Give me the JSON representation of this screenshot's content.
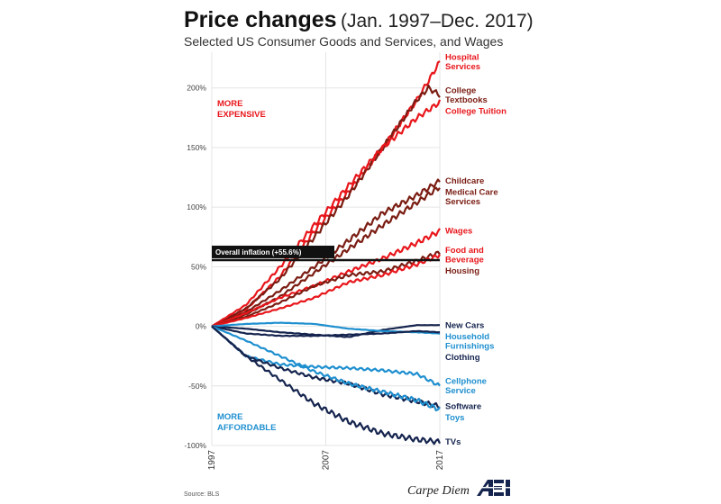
{
  "header": {
    "title_bold": "Price changes",
    "title_range": "(Jan. 1997–Dec. 2017)",
    "subtitle": "Selected US Consumer Goods and Services, and Wages"
  },
  "footer": {
    "source": "Source: BLS",
    "brand": "Carpe Diem",
    "logo_text": "AEI"
  },
  "colors": {
    "red": "#e8161b",
    "dark_red": "#7a1c12",
    "blue": "#1e8fcf",
    "navy": "#15244e",
    "black": "#111111"
  },
  "chart_data": {
    "type": "line",
    "xlim": [
      1997,
      2017
    ],
    "ylim": [
      -100,
      230
    ],
    "xticks": [
      {
        "value": 1997,
        "label": "1997"
      },
      {
        "value": 2007,
        "label": "2007"
      },
      {
        "value": 2017,
        "label": "2017"
      }
    ],
    "yticks": [
      {
        "value": 200,
        "label": "200%"
      },
      {
        "value": 150,
        "label": "150%"
      },
      {
        "value": 100,
        "label": "100%"
      },
      {
        "value": 50,
        "label": "50%"
      },
      {
        "value": 0,
        "label": "0%"
      },
      {
        "value": -50,
        "label": "-50%"
      },
      {
        "value": -100,
        "label": "-100%"
      }
    ],
    "zones": [
      {
        "text": "MORE EXPENSIVE",
        "color": "red"
      },
      {
        "text": "MORE AFFORDABLE",
        "color": "blue"
      }
    ],
    "inflation": {
      "label": "Overall inflation (+55.6%)",
      "value": 55.6
    },
    "series": [
      {
        "name": "Hospital Services",
        "color": "red",
        "x": [
          1997,
          2000,
          2003,
          2006,
          2009,
          2012,
          2015,
          2017
        ],
        "values": [
          0,
          14,
          42,
          80,
          113,
          150,
          190,
          222
        ]
      },
      {
        "name": "College Textbooks",
        "color": "dark_red",
        "x": [
          1997,
          2000,
          2003,
          2006,
          2009,
          2012,
          2015,
          2016,
          2017
        ],
        "values": [
          0,
          15,
          40,
          75,
          110,
          150,
          190,
          200,
          194
        ]
      },
      {
        "name": "College Tuition",
        "color": "red",
        "x": [
          1997,
          2000,
          2003,
          2006,
          2009,
          2012,
          2015,
          2017
        ],
        "values": [
          0,
          18,
          50,
          85,
          118,
          150,
          175,
          188
        ]
      },
      {
        "name": "Childcare",
        "color": "dark_red",
        "x": [
          1997,
          2000,
          2003,
          2006,
          2009,
          2012,
          2015,
          2017
        ],
        "values": [
          0,
          12,
          30,
          50,
          72,
          95,
          110,
          122
        ]
      },
      {
        "name": "Medical Care Services",
        "color": "dark_red",
        "x": [
          1997,
          2000,
          2003,
          2006,
          2009,
          2012,
          2015,
          2017
        ],
        "values": [
          0,
          10,
          25,
          45,
          65,
          85,
          104,
          117
        ]
      },
      {
        "name": "Wages",
        "color": "red",
        "x": [
          1997,
          2000,
          2003,
          2006,
          2009,
          2012,
          2015,
          2017
        ],
        "values": [
          0,
          11,
          24,
          34,
          46,
          57,
          70,
          80
        ]
      },
      {
        "name": "Housing",
        "color": "dark_red",
        "x": [
          1997,
          2000,
          2003,
          2006,
          2009,
          2012,
          2015,
          2017
        ],
        "values": [
          0,
          8,
          20,
          34,
          43,
          46,
          55,
          62
        ]
      },
      {
        "name": "Food and Beverage",
        "color": "red",
        "x": [
          1997,
          2000,
          2003,
          2006,
          2009,
          2012,
          2015,
          2017
        ],
        "values": [
          0,
          7,
          15,
          24,
          37,
          43,
          52,
          60
        ]
      },
      {
        "name": "New Cars",
        "color": "navy",
        "x": [
          1997,
          2000,
          2003,
          2006,
          2009,
          2012,
          2015,
          2017
        ],
        "values": [
          0,
          -2,
          -5,
          -7,
          -9,
          -3,
          1,
          1
        ]
      },
      {
        "name": "Household Furnishings",
        "color": "blue",
        "x": [
          1997,
          2000,
          2003,
          2006,
          2009,
          2012,
          2015,
          2017
        ],
        "values": [
          0,
          2,
          3,
          2,
          -2,
          -4,
          -5,
          -6
        ]
      },
      {
        "name": "Clothing",
        "color": "navy",
        "x": [
          1997,
          2000,
          2003,
          2006,
          2009,
          2012,
          2015,
          2017
        ],
        "values": [
          0,
          -6,
          -8,
          -8,
          -7,
          -6,
          -4,
          -5
        ]
      },
      {
        "name": "Cellphone Service",
        "color": "blue",
        "x": [
          1997,
          2000,
          2003,
          2006,
          2009,
          2012,
          2015,
          2017
        ],
        "values": [
          0,
          -25,
          -32,
          -34,
          -35,
          -37,
          -40,
          -50
        ]
      },
      {
        "name": "Software",
        "color": "navy",
        "x": [
          1997,
          2000,
          2003,
          2006,
          2009,
          2012,
          2015,
          2017
        ],
        "values": [
          0,
          -25,
          -35,
          -43,
          -48,
          -57,
          -63,
          -67
        ]
      },
      {
        "name": "Toys",
        "color": "blue",
        "x": [
          1997,
          2000,
          2003,
          2006,
          2009,
          2012,
          2015,
          2017
        ],
        "values": [
          0,
          -12,
          -25,
          -38,
          -48,
          -55,
          -62,
          -70
        ]
      },
      {
        "name": "TVs",
        "color": "navy",
        "x": [
          1997,
          2000,
          2003,
          2006,
          2009,
          2012,
          2015,
          2017
        ],
        "values": [
          0,
          -25,
          -45,
          -65,
          -80,
          -90,
          -95,
          -97
        ]
      }
    ],
    "labels": [
      {
        "series": "Hospital Services",
        "lines": [
          "Hospital",
          "Services"
        ],
        "color": "red"
      },
      {
        "series": "College Textbooks",
        "lines": [
          "College",
          "Textbooks"
        ],
        "color": "dark_red"
      },
      {
        "series": "College Tuition",
        "lines": [
          "College Tuition"
        ],
        "color": "red"
      },
      {
        "series": "Childcare",
        "lines": [
          "Childcare"
        ],
        "color": "dark_red"
      },
      {
        "series": "Medical Care Services",
        "lines": [
          "Medical Care",
          "Services"
        ],
        "color": "dark_red"
      },
      {
        "series": "Wages",
        "lines": [
          "Wages"
        ],
        "color": "red"
      },
      {
        "series": "Housing",
        "lines": [
          "Housing"
        ],
        "color": "dark_red"
      },
      {
        "series": "Food and Beverage",
        "lines": [
          "Food and",
          "Beverage"
        ],
        "color": "red"
      },
      {
        "series": "New Cars",
        "lines": [
          "New Cars"
        ],
        "color": "navy"
      },
      {
        "series": "Household Furnishings",
        "lines": [
          "Household",
          "Furnishings"
        ],
        "color": "blue"
      },
      {
        "series": "Clothing",
        "lines": [
          "Clothing"
        ],
        "color": "navy"
      },
      {
        "series": "Cellphone Service",
        "lines": [
          "Cellphone",
          "Service"
        ],
        "color": "blue"
      },
      {
        "series": "Software",
        "lines": [
          "Software"
        ],
        "color": "navy"
      },
      {
        "series": "Toys",
        "lines": [
          "Toys"
        ],
        "color": "blue"
      },
      {
        "series": "TVs",
        "lines": [
          "TVs"
        ],
        "color": "navy"
      }
    ]
  }
}
